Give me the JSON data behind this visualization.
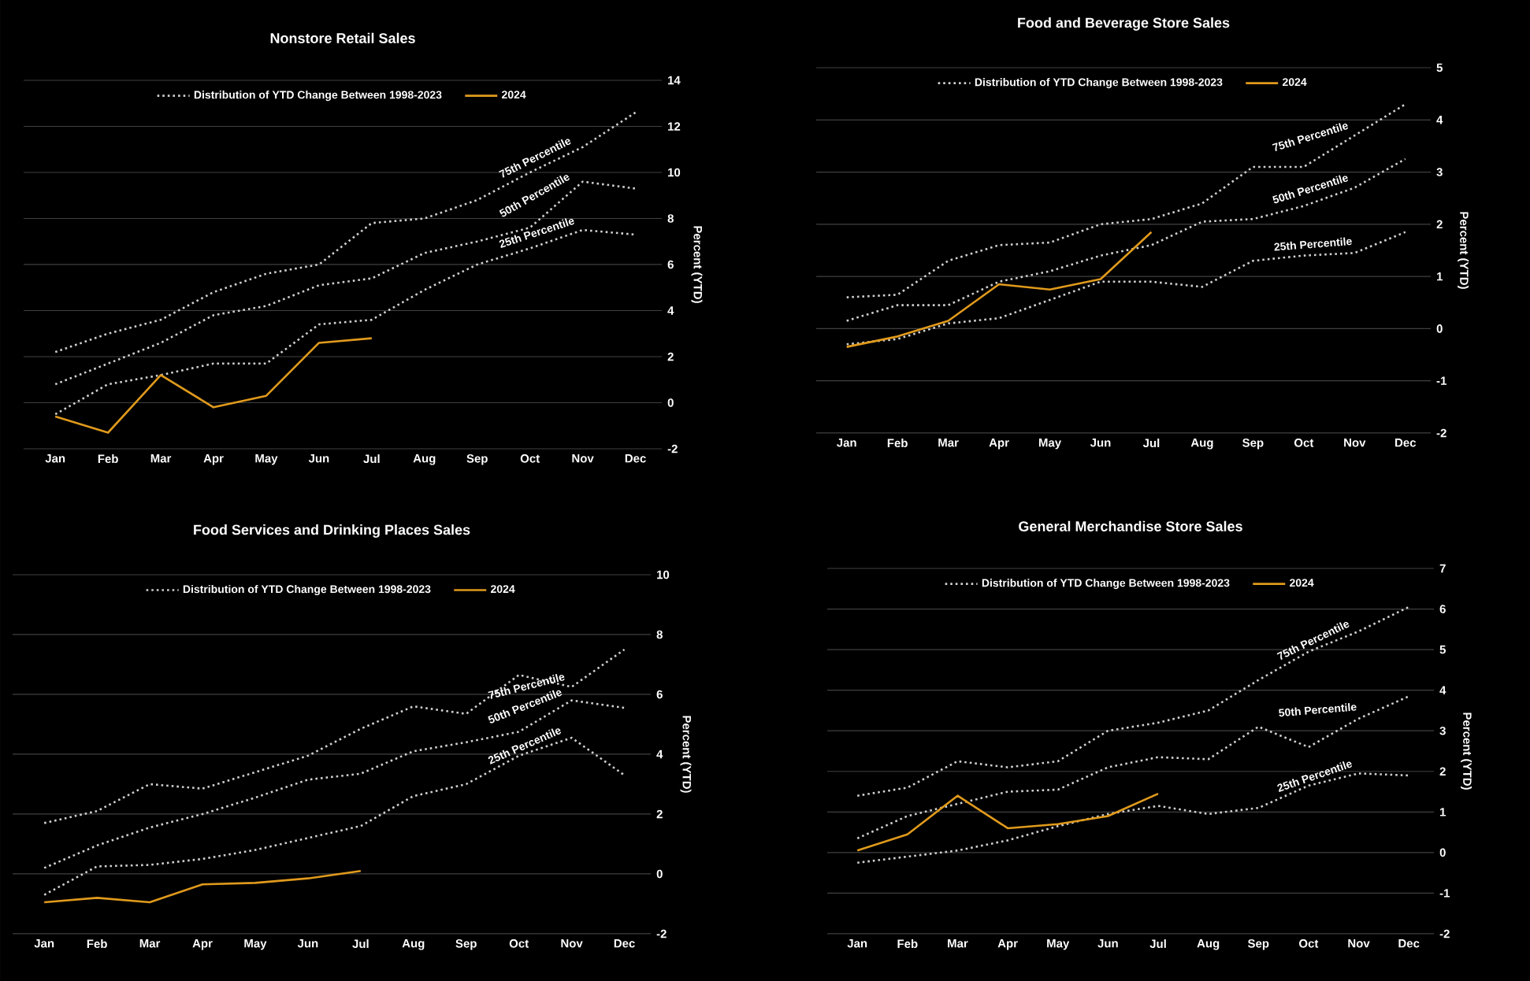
{
  "chart_data": [
    {
      "type": "line",
      "title": "Nonstore Retail Sales",
      "ylabel": "Percent (YTD)",
      "categories": [
        "Jan",
        "Feb",
        "Mar",
        "Apr",
        "May",
        "Jun",
        "Jul",
        "Aug",
        "Sep",
        "Oct",
        "Nov",
        "Dec"
      ],
      "ylim": [
        -2,
        14
      ],
      "yticks": [
        -2,
        0,
        2,
        4,
        6,
        8,
        10,
        12,
        14
      ],
      "grid": "y",
      "legend": "top",
      "marker": "none",
      "series": [
        {
          "name": "Distribution of YTD Change Between 1998-2023",
          "color": "#d0d0d0",
          "line_style": "dotted",
          "values": [
            2.2,
            3.0,
            3.6,
            4.8,
            5.6,
            6.0,
            7.8,
            8.0,
            8.8,
            10.0,
            11.1,
            12.6
          ]
        },
        {
          "color": "#d0d0d0",
          "line_style": "dotted",
          "values": [
            0.8,
            1.7,
            2.6,
            3.8,
            4.2,
            5.1,
            5.4,
            6.5,
            7.0,
            7.6,
            9.6,
            9.3
          ]
        },
        {
          "color": "#d0d0d0",
          "line_style": "dotted",
          "values": [
            -0.5,
            0.8,
            1.2,
            1.7,
            1.7,
            3.4,
            3.6,
            4.9,
            6.0,
            6.7,
            7.5,
            7.3
          ]
        },
        {
          "name": "2024",
          "color": "#e09a1c",
          "line_style": "solid",
          "values": [
            -0.6,
            -1.3,
            1.2,
            -0.2,
            0.3,
            2.6,
            2.8,
            null,
            null,
            null,
            null,
            null
          ]
        }
      ],
      "annotations": [
        "75th Percentile",
        "50th Percentile",
        "25th Percentile"
      ]
    },
    {
      "type": "line",
      "title": "Food and Beverage Store Sales",
      "ylabel": "Percent (YTD)",
      "categories": [
        "Jan",
        "Feb",
        "Mar",
        "Apr",
        "May",
        "Jun",
        "Jul",
        "Aug",
        "Sep",
        "Oct",
        "Nov",
        "Dec"
      ],
      "ylim": [
        -2,
        5
      ],
      "yticks": [
        -2,
        -1,
        0,
        1,
        2,
        3,
        4,
        5
      ],
      "grid": "y",
      "legend": "top",
      "marker": "none",
      "series": [
        {
          "name": "Distribution of YTD Change Between 1998-2023",
          "color": "#d0d0d0",
          "line_style": "dotted",
          "values": [
            0.6,
            0.65,
            1.3,
            1.6,
            1.65,
            2.0,
            2.1,
            2.4,
            3.1,
            3.1,
            3.7,
            4.3
          ]
        },
        {
          "color": "#d0d0d0",
          "line_style": "dotted",
          "values": [
            0.15,
            0.45,
            0.45,
            0.9,
            1.1,
            1.4,
            1.6,
            2.05,
            2.1,
            2.35,
            2.7,
            3.25
          ]
        },
        {
          "color": "#d0d0d0",
          "line_style": "dotted",
          "values": [
            -0.3,
            -0.2,
            0.1,
            0.2,
            0.55,
            0.9,
            0.9,
            0.8,
            1.3,
            1.4,
            1.45,
            1.85
          ]
        },
        {
          "name": "2024",
          "color": "#e09a1c",
          "line_style": "solid",
          "values": [
            -0.35,
            -0.15,
            0.15,
            0.85,
            0.75,
            0.95,
            1.85,
            null,
            null,
            null,
            null,
            null
          ]
        }
      ],
      "annotations": [
        "75th Percentile",
        "50th Percentile",
        "25th Percentile"
      ]
    },
    {
      "type": "line",
      "title": "Food Services and Drinking Places Sales",
      "ylabel": "Percent (YTD)",
      "categories": [
        "Jan",
        "Feb",
        "Mar",
        "Apr",
        "May",
        "Jun",
        "Jul",
        "Aug",
        "Sep",
        "Oct",
        "Nov",
        "Dec"
      ],
      "ylim": [
        -2,
        10
      ],
      "yticks": [
        -2,
        0,
        2,
        4,
        6,
        8,
        10
      ],
      "grid": "y",
      "legend": "top",
      "marker": "none",
      "series": [
        {
          "name": "Distribution of YTD Change Between 1998-2023",
          "color": "#d0d0d0",
          "line_style": "dotted",
          "values": [
            1.7,
            2.1,
            3.0,
            2.85,
            3.4,
            3.95,
            4.85,
            5.6,
            5.35,
            6.65,
            6.25,
            7.5
          ]
        },
        {
          "color": "#d0d0d0",
          "line_style": "dotted",
          "values": [
            0.2,
            0.95,
            1.55,
            2.0,
            2.55,
            3.15,
            3.35,
            4.1,
            4.4,
            4.75,
            5.8,
            5.55
          ]
        },
        {
          "color": "#d0d0d0",
          "line_style": "dotted",
          "values": [
            -0.7,
            0.25,
            0.3,
            0.5,
            0.8,
            1.2,
            1.6,
            2.6,
            3.0,
            3.95,
            4.55,
            3.3
          ]
        },
        {
          "name": "2024",
          "color": "#e09a1c",
          "line_style": "solid",
          "values": [
            -0.95,
            -0.8,
            -0.95,
            -0.35,
            -0.3,
            -0.15,
            0.1,
            null,
            null,
            null,
            null,
            null
          ]
        }
      ],
      "annotations": [
        "75th Percentile",
        "50th Percentile",
        "25th Percentile"
      ]
    },
    {
      "type": "line",
      "title": "General Merchandise Store Sales",
      "ylabel": "Percent (YTD)",
      "categories": [
        "Jan",
        "Feb",
        "Mar",
        "Apr",
        "May",
        "Jun",
        "Jul",
        "Aug",
        "Sep",
        "Oct",
        "Nov",
        "Dec"
      ],
      "ylim": [
        -2,
        7
      ],
      "yticks": [
        -2,
        -1,
        0,
        1,
        2,
        3,
        4,
        5,
        6,
        7
      ],
      "grid": "y",
      "legend": "top",
      "marker": "none",
      "series": [
        {
          "name": "Distribution of YTD Change Between 1998-2023",
          "color": "#d0d0d0",
          "line_style": "dotted",
          "values": [
            1.4,
            1.6,
            2.25,
            2.1,
            2.25,
            3.0,
            3.2,
            3.5,
            4.25,
            4.95,
            5.45,
            6.05
          ]
        },
        {
          "color": "#d0d0d0",
          "line_style": "dotted",
          "values": [
            0.35,
            0.9,
            1.2,
            1.5,
            1.55,
            2.1,
            2.35,
            2.3,
            3.1,
            2.6,
            3.3,
            3.85
          ]
        },
        {
          "color": "#d0d0d0",
          "line_style": "dotted",
          "values": [
            -0.25,
            -0.1,
            0.05,
            0.3,
            0.65,
            0.95,
            1.15,
            0.95,
            1.1,
            1.65,
            1.95,
            1.9
          ]
        },
        {
          "name": "2024",
          "color": "#e09a1c",
          "line_style": "solid",
          "values": [
            0.05,
            0.45,
            1.4,
            0.6,
            0.7,
            0.9,
            1.45,
            null,
            null,
            null,
            null,
            null
          ]
        }
      ],
      "annotations": [
        "75th Percentile",
        "50th Percentile",
        "25th Percentile"
      ]
    }
  ]
}
